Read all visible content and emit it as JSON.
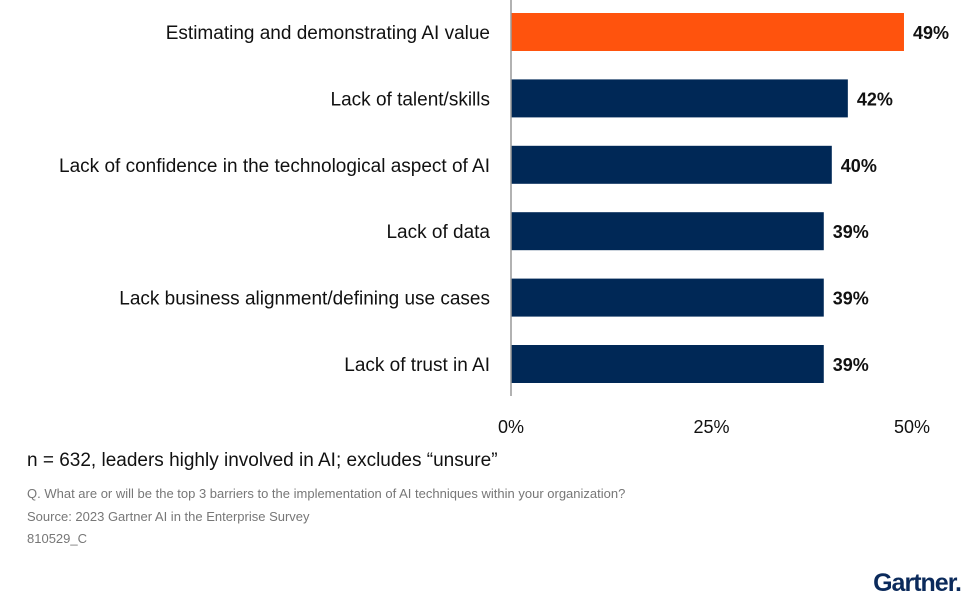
{
  "chart_data": {
    "type": "bar",
    "orientation": "horizontal",
    "categories": [
      "Estimating and demonstrating AI value",
      "Lack of talent/skills",
      "Lack of confidence in the technological aspect of AI",
      "Lack of data",
      "Lack business alignment/defining use cases",
      "Lack of trust in AI"
    ],
    "values": [
      49,
      42,
      40,
      39,
      39,
      39
    ],
    "value_labels": [
      "49%",
      "42%",
      "40%",
      "39%",
      "39%",
      "39%"
    ],
    "colors": [
      "#ff530d",
      "#002856",
      "#002856",
      "#002856",
      "#002856",
      "#002856"
    ],
    "xlim": [
      0,
      50
    ],
    "xticks": [
      0,
      25,
      50
    ],
    "xtick_labels": [
      "0%",
      "25%",
      "50%"
    ],
    "grid": false,
    "legend": "none"
  },
  "footer": {
    "note": "n = 632, leaders highly involved in AI; excludes “unsure”",
    "question": "Q. What are or will be the top 3 barriers to the implementation of AI techniques within your organization?",
    "source": "Source: 2023 Gartner AI in the Enterprise Survey",
    "code": "810529_C",
    "logo": "Gartner."
  }
}
